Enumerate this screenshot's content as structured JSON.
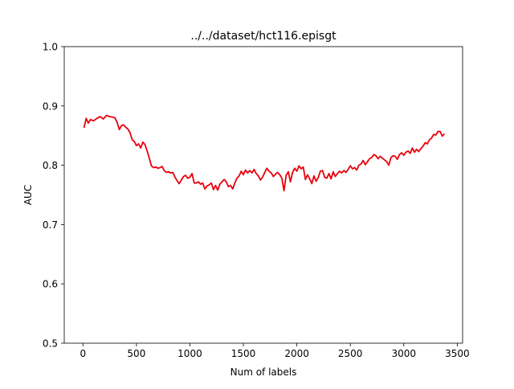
{
  "chart_data": {
    "type": "line",
    "title": "../../dataset/hct116.episgt",
    "xlabel": "Num of labels",
    "ylabel": "AUC",
    "xlim": [
      -175,
      3550
    ],
    "ylim": [
      0.5,
      1.0
    ],
    "xticks": [
      0,
      500,
      1000,
      1500,
      2000,
      2500,
      3000,
      3500
    ],
    "xtick_labels": [
      "0",
      "500",
      "1000",
      "1500",
      "2000",
      "2500",
      "3000",
      "3500"
    ],
    "yticks": [
      0.5,
      0.6,
      0.7,
      0.8,
      0.9,
      1.0
    ],
    "ytick_labels": [
      "0.5",
      "0.6",
      "0.7",
      "0.8",
      "0.9",
      "1.0"
    ],
    "grid": false,
    "legend": "none",
    "series": [
      {
        "color": "#e8000b",
        "x": [
          10,
          30,
          50,
          70,
          100,
          130,
          160,
          190,
          220,
          250,
          280,
          300,
          320,
          340,
          360,
          380,
          400,
          420,
          440,
          460,
          480,
          500,
          520,
          540,
          560,
          580,
          600,
          620,
          640,
          660,
          680,
          700,
          720,
          740,
          760,
          780,
          800,
          820,
          840,
          860,
          880,
          900,
          920,
          940,
          960,
          980,
          1000,
          1020,
          1040,
          1060,
          1080,
          1100,
          1120,
          1140,
          1160,
          1180,
          1200,
          1220,
          1240,
          1260,
          1280,
          1300,
          1320,
          1340,
          1360,
          1380,
          1400,
          1420,
          1440,
          1460,
          1480,
          1500,
          1520,
          1540,
          1560,
          1580,
          1600,
          1620,
          1640,
          1660,
          1680,
          1700,
          1720,
          1740,
          1760,
          1780,
          1800,
          1820,
          1840,
          1860,
          1880,
          1900,
          1920,
          1940,
          1960,
          1980,
          2000,
          2020,
          2040,
          2060,
          2080,
          2100,
          2120,
          2140,
          2160,
          2180,
          2200,
          2220,
          2240,
          2260,
          2280,
          2300,
          2320,
          2340,
          2360,
          2380,
          2400,
          2420,
          2440,
          2460,
          2480,
          2500,
          2520,
          2540,
          2560,
          2580,
          2600,
          2620,
          2640,
          2660,
          2680,
          2700,
          2720,
          2740,
          2760,
          2780,
          2800,
          2820,
          2840,
          2860,
          2880,
          2900,
          2920,
          2940,
          2960,
          2980,
          3000,
          3020,
          3040,
          3060,
          3080,
          3100,
          3120,
          3140,
          3160,
          3180,
          3200,
          3220,
          3240,
          3260,
          3280,
          3300,
          3320,
          3340,
          3360,
          3380
        ],
        "values": [
          0.863,
          0.879,
          0.871,
          0.877,
          0.875,
          0.879,
          0.882,
          0.878,
          0.884,
          0.882,
          0.881,
          0.88,
          0.872,
          0.86,
          0.867,
          0.868,
          0.864,
          0.861,
          0.855,
          0.843,
          0.84,
          0.833,
          0.836,
          0.829,
          0.839,
          0.835,
          0.824,
          0.812,
          0.799,
          0.796,
          0.797,
          0.795,
          0.796,
          0.798,
          0.791,
          0.788,
          0.789,
          0.787,
          0.788,
          0.78,
          0.774,
          0.769,
          0.775,
          0.781,
          0.783,
          0.778,
          0.78,
          0.786,
          0.77,
          0.77,
          0.772,
          0.768,
          0.77,
          0.76,
          0.765,
          0.767,
          0.77,
          0.759,
          0.766,
          0.758,
          0.768,
          0.772,
          0.776,
          0.772,
          0.764,
          0.766,
          0.76,
          0.77,
          0.778,
          0.782,
          0.79,
          0.784,
          0.792,
          0.787,
          0.791,
          0.787,
          0.793,
          0.786,
          0.782,
          0.775,
          0.78,
          0.788,
          0.795,
          0.79,
          0.787,
          0.781,
          0.785,
          0.788,
          0.784,
          0.778,
          0.757,
          0.783,
          0.789,
          0.772,
          0.788,
          0.795,
          0.79,
          0.799,
          0.794,
          0.797,
          0.776,
          0.784,
          0.777,
          0.769,
          0.782,
          0.773,
          0.779,
          0.79,
          0.791,
          0.78,
          0.778,
          0.786,
          0.777,
          0.789,
          0.781,
          0.786,
          0.79,
          0.787,
          0.791,
          0.788,
          0.793,
          0.799,
          0.794,
          0.796,
          0.792,
          0.8,
          0.802,
          0.808,
          0.801,
          0.806,
          0.811,
          0.813,
          0.818,
          0.816,
          0.811,
          0.815,
          0.812,
          0.809,
          0.806,
          0.8,
          0.813,
          0.816,
          0.815,
          0.81,
          0.818,
          0.821,
          0.817,
          0.822,
          0.824,
          0.82,
          0.829,
          0.822,
          0.827,
          0.823,
          0.828,
          0.832,
          0.838,
          0.836,
          0.843,
          0.846,
          0.852,
          0.851,
          0.857,
          0.857,
          0.849,
          0.853
        ]
      }
    ]
  }
}
